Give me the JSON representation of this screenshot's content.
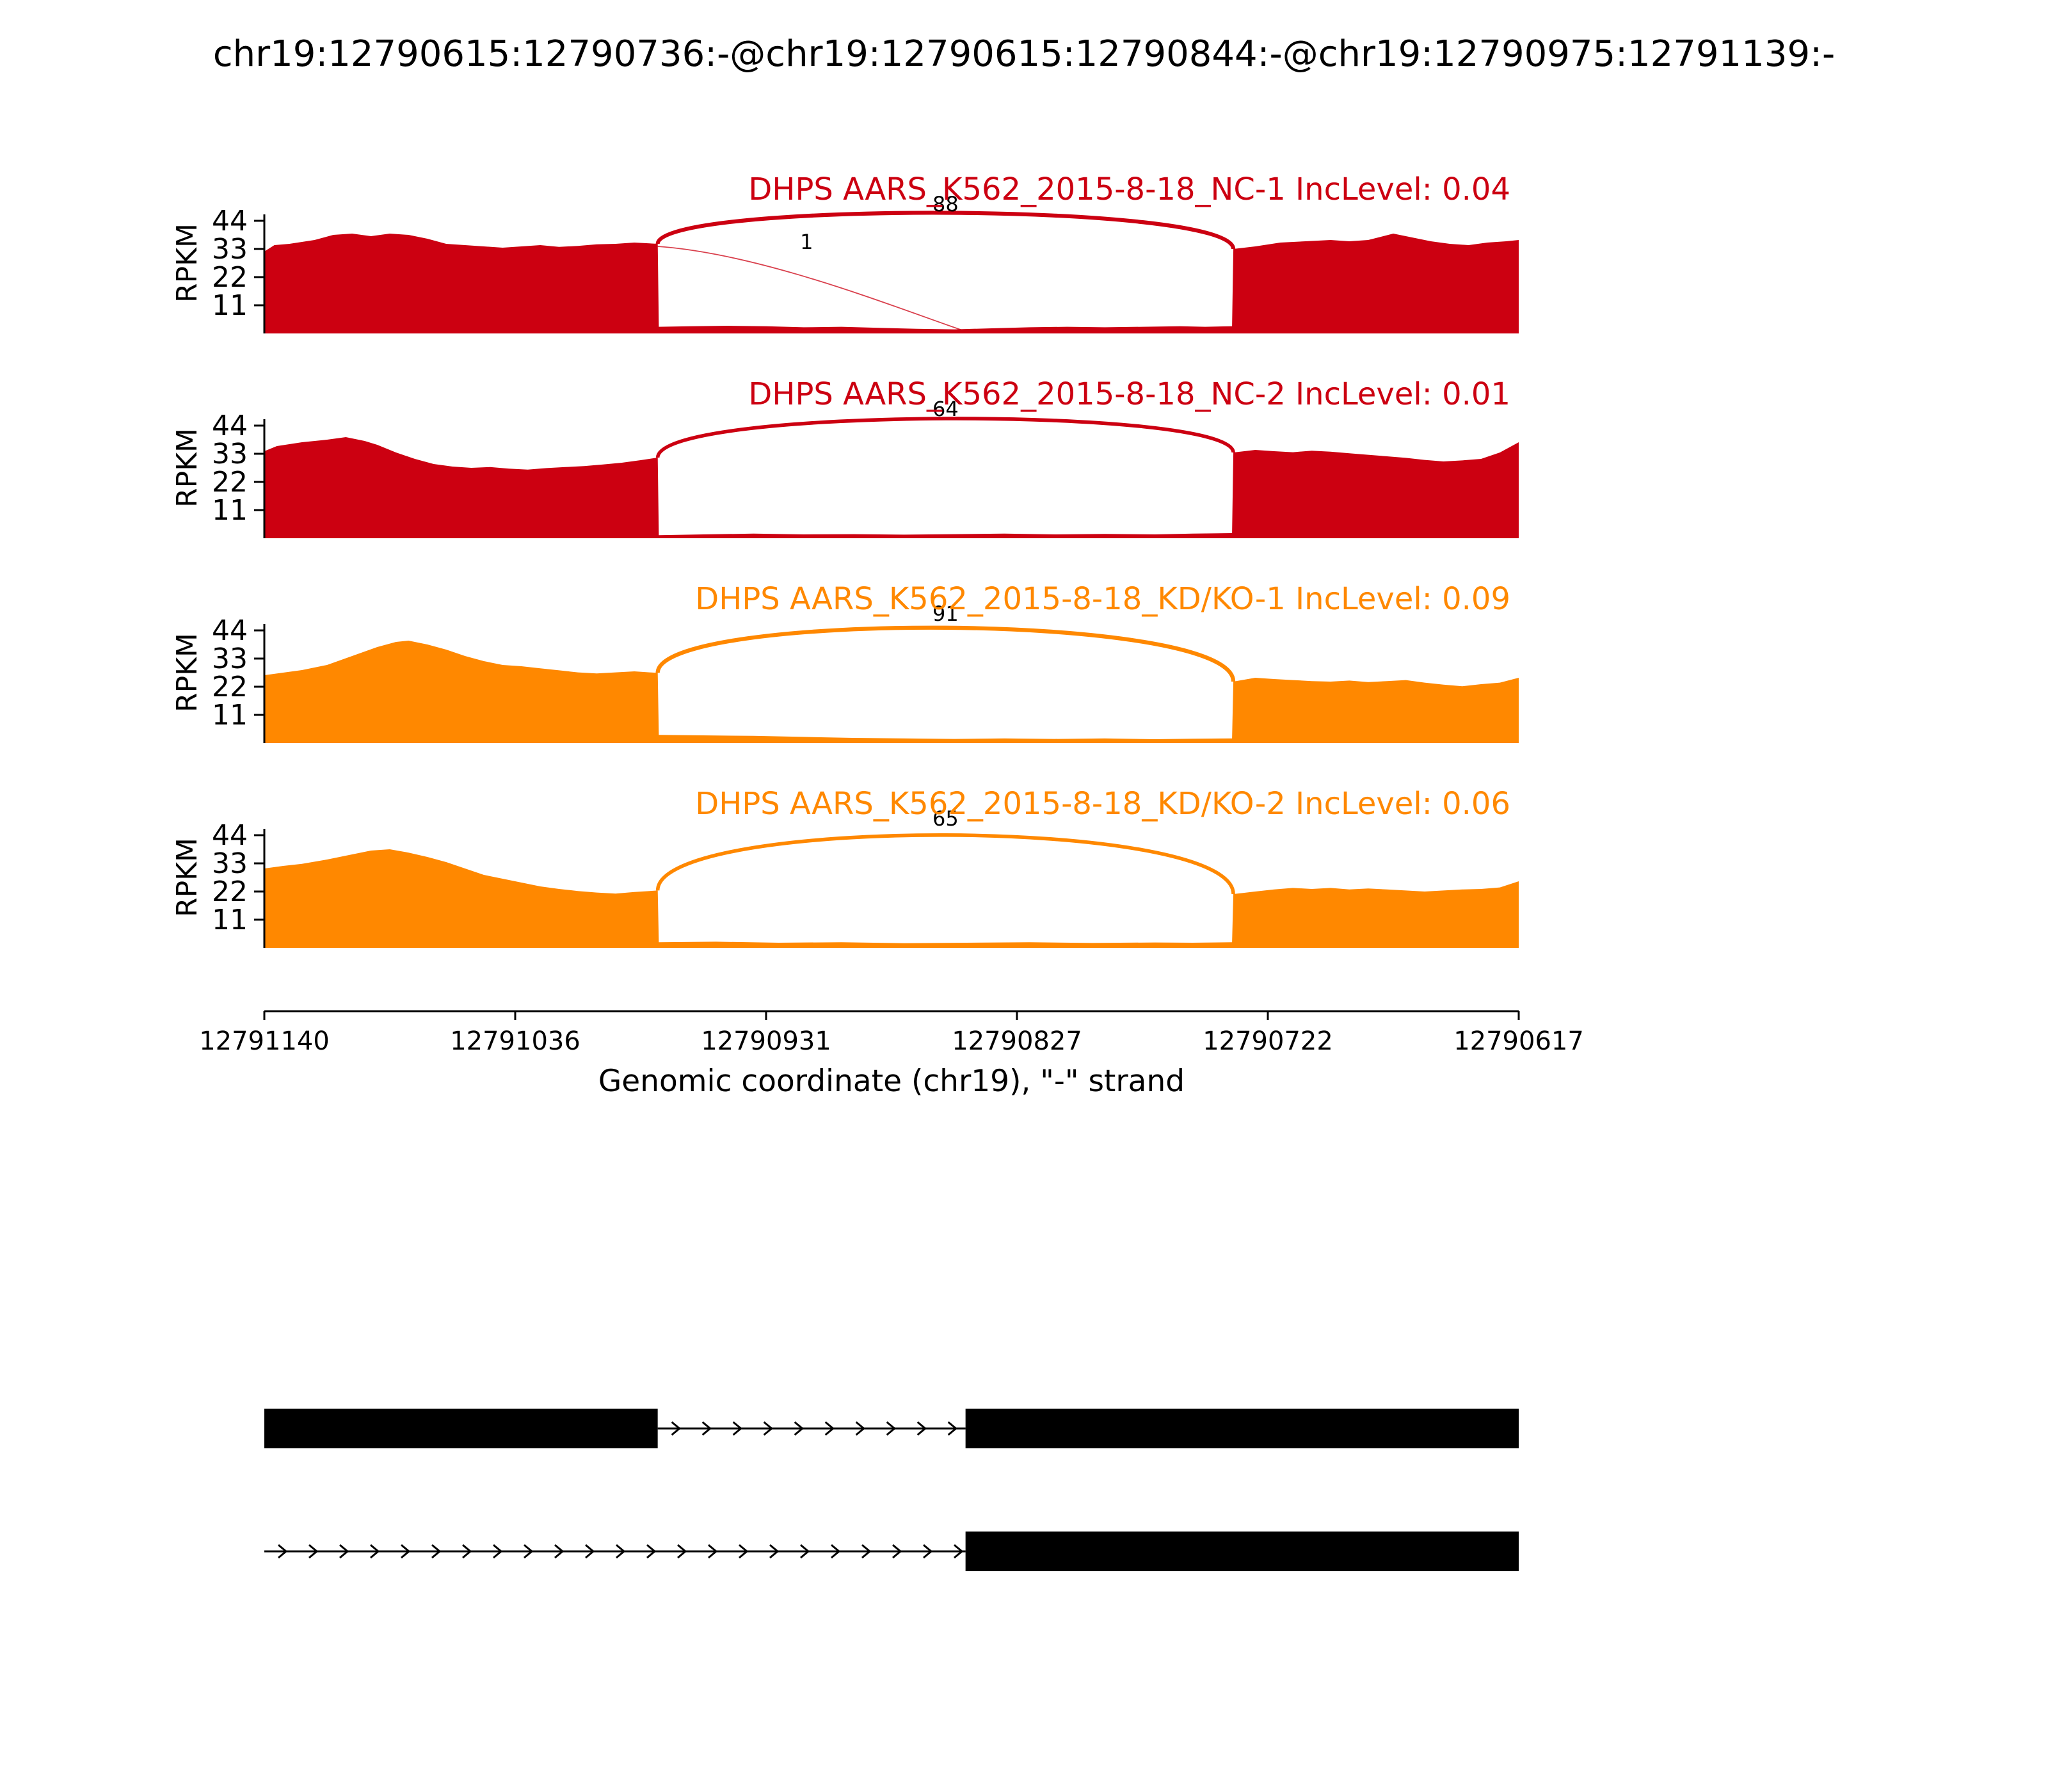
{
  "title": "chr19:12790615:12790736:-@chr19:12790615:12790844:-@chr19:12790975:12791139:-",
  "chart_data": {
    "type": "area",
    "title": "chr19:12790615:12790736:-@chr19:12790615:12790844:-@chr19:12790975:12791139:-",
    "xlabel": "Genomic coordinate (chr19), \"-\" strand",
    "ylabel": "RPKM",
    "ylim": [
      0,
      48
    ],
    "y_ticks": [
      11,
      22,
      33,
      44
    ],
    "x_tick_labels": [
      "12791140",
      "12791036",
      "12790931",
      "12790827",
      "12790722",
      "12790617"
    ],
    "grid": false,
    "legend": "none",
    "tracks": [
      {
        "name": "DHPS AARS_K562_2015-8-18_NC-1",
        "inc_level_label": "IncLevel: 0.04",
        "color": "#CC0011",
        "coverage": [
          [
            0,
            32
          ],
          [
            0.008,
            34.5
          ],
          [
            0.02,
            35
          ],
          [
            0.04,
            36.5
          ],
          [
            0.055,
            38.5
          ],
          [
            0.07,
            39
          ],
          [
            0.085,
            38
          ],
          [
            0.1,
            39
          ],
          [
            0.115,
            38.5
          ],
          [
            0.13,
            37
          ],
          [
            0.145,
            35
          ],
          [
            0.16,
            34.5
          ],
          [
            0.175,
            34
          ],
          [
            0.19,
            33.5
          ],
          [
            0.205,
            34
          ],
          [
            0.22,
            34.5
          ],
          [
            0.235,
            33.8
          ],
          [
            0.25,
            34.2
          ],
          [
            0.265,
            34.8
          ],
          [
            0.28,
            35
          ],
          [
            0.295,
            35.5
          ],
          [
            0.3136,
            35
          ],
          [
            0.3145,
            2.6
          ],
          [
            0.34,
            2.8
          ],
          [
            0.37,
            3.0
          ],
          [
            0.4,
            2.8
          ],
          [
            0.43,
            2.4
          ],
          [
            0.46,
            2.6
          ],
          [
            0.49,
            2.2
          ],
          [
            0.52,
            1.8
          ],
          [
            0.55,
            1.6
          ],
          [
            0.58,
            2.0
          ],
          [
            0.61,
            2.4
          ],
          [
            0.64,
            2.6
          ],
          [
            0.67,
            2.4
          ],
          [
            0.7,
            2.6
          ],
          [
            0.73,
            2.8
          ],
          [
            0.75,
            2.6
          ],
          [
            0.7715,
            2.8
          ],
          [
            0.7725,
            33
          ],
          [
            0.79,
            34
          ],
          [
            0.81,
            35.5
          ],
          [
            0.83,
            36
          ],
          [
            0.85,
            36.5
          ],
          [
            0.865,
            36
          ],
          [
            0.88,
            36.5
          ],
          [
            0.9,
            39
          ],
          [
            0.915,
            37.5
          ],
          [
            0.93,
            36
          ],
          [
            0.945,
            35
          ],
          [
            0.96,
            34.5
          ],
          [
            0.975,
            35.5
          ],
          [
            0.99,
            36
          ],
          [
            1,
            36.5
          ]
        ],
        "junctions": [
          {
            "x1": 0.3136,
            "y1": 35,
            "x2": 0.7725,
            "y2": 33,
            "count": 88
          },
          {
            "x1": 0.3136,
            "y1": 34,
            "x2": 0.561,
            "y2": 0.5,
            "count": 1,
            "minor": true
          }
        ]
      },
      {
        "name": "DHPS AARS_K562_2015-8-18_NC-2",
        "inc_level_label": "IncLevel: 0.01",
        "color": "#CC0011",
        "coverage": [
          [
            0,
            34
          ],
          [
            0.01,
            36
          ],
          [
            0.03,
            37.5
          ],
          [
            0.05,
            38.5
          ],
          [
            0.065,
            39.5
          ],
          [
            0.08,
            38
          ],
          [
            0.09,
            36.5
          ],
          [
            0.105,
            33.5
          ],
          [
            0.12,
            31
          ],
          [
            0.135,
            29
          ],
          [
            0.15,
            28
          ],
          [
            0.165,
            27.5
          ],
          [
            0.18,
            27.8
          ],
          [
            0.195,
            27.2
          ],
          [
            0.21,
            26.8
          ],
          [
            0.225,
            27.4
          ],
          [
            0.24,
            27.8
          ],
          [
            0.255,
            28.2
          ],
          [
            0.27,
            28.8
          ],
          [
            0.285,
            29.5
          ],
          [
            0.3,
            30.5
          ],
          [
            0.3136,
            31.5
          ],
          [
            0.3145,
            1.2
          ],
          [
            0.35,
            1.5
          ],
          [
            0.39,
            1.8
          ],
          [
            0.43,
            1.5
          ],
          [
            0.47,
            1.6
          ],
          [
            0.51,
            1.4
          ],
          [
            0.55,
            1.6
          ],
          [
            0.59,
            1.8
          ],
          [
            0.63,
            1.5
          ],
          [
            0.67,
            1.7
          ],
          [
            0.71,
            1.5
          ],
          [
            0.74,
            1.8
          ],
          [
            0.7715,
            2.0
          ],
          [
            0.7725,
            33.5
          ],
          [
            0.79,
            34.5
          ],
          [
            0.805,
            34
          ],
          [
            0.82,
            33.6
          ],
          [
            0.835,
            34.2
          ],
          [
            0.85,
            33.8
          ],
          [
            0.865,
            33.2
          ],
          [
            0.88,
            32.6
          ],
          [
            0.895,
            32
          ],
          [
            0.91,
            31.4
          ],
          [
            0.925,
            30.6
          ],
          [
            0.94,
            30
          ],
          [
            0.955,
            30.4
          ],
          [
            0.97,
            31
          ],
          [
            0.985,
            33.5
          ],
          [
            1,
            37.5
          ]
        ],
        "junctions": [
          {
            "x1": 0.3136,
            "y1": 31.5,
            "x2": 0.7725,
            "y2": 33.5,
            "count": 64
          }
        ]
      },
      {
        "name": "DHPS AARS_K562_2015-8-18_KD/KO-1",
        "inc_level_label": "IncLevel: 0.09",
        "color": "#FF8800",
        "coverage": [
          [
            0,
            26.5
          ],
          [
            0.015,
            27.5
          ],
          [
            0.03,
            28.5
          ],
          [
            0.05,
            30.5
          ],
          [
            0.07,
            34
          ],
          [
            0.09,
            37.5
          ],
          [
            0.105,
            39.5
          ],
          [
            0.115,
            40
          ],
          [
            0.13,
            38.5
          ],
          [
            0.145,
            36.5
          ],
          [
            0.16,
            34
          ],
          [
            0.175,
            32
          ],
          [
            0.19,
            30.5
          ],
          [
            0.205,
            30
          ],
          [
            0.22,
            29.2
          ],
          [
            0.235,
            28.4
          ],
          [
            0.25,
            27.6
          ],
          [
            0.265,
            27.2
          ],
          [
            0.28,
            27.6
          ],
          [
            0.295,
            28
          ],
          [
            0.3136,
            27.4
          ],
          [
            0.3145,
            3.2
          ],
          [
            0.35,
            3.0
          ],
          [
            0.39,
            2.8
          ],
          [
            0.43,
            2.4
          ],
          [
            0.47,
            2.0
          ],
          [
            0.51,
            1.8
          ],
          [
            0.55,
            1.6
          ],
          [
            0.59,
            1.8
          ],
          [
            0.63,
            1.6
          ],
          [
            0.67,
            1.8
          ],
          [
            0.71,
            1.5
          ],
          [
            0.74,
            1.7
          ],
          [
            0.7715,
            1.8
          ],
          [
            0.7725,
            24
          ],
          [
            0.79,
            25.5
          ],
          [
            0.805,
            25
          ],
          [
            0.82,
            24.6
          ],
          [
            0.835,
            24.2
          ],
          [
            0.85,
            24
          ],
          [
            0.865,
            24.4
          ],
          [
            0.88,
            23.8
          ],
          [
            0.895,
            24.2
          ],
          [
            0.91,
            24.6
          ],
          [
            0.925,
            23.6
          ],
          [
            0.94,
            22.8
          ],
          [
            0.955,
            22.2
          ],
          [
            0.97,
            23
          ],
          [
            0.985,
            23.6
          ],
          [
            1,
            25.5
          ]
        ],
        "junctions": [
          {
            "x1": 0.3136,
            "y1": 27.4,
            "x2": 0.7725,
            "y2": 24,
            "count": 91
          }
        ]
      },
      {
        "name": "DHPS AARS_K562_2015-8-18_KD/KO-2",
        "inc_level_label": "IncLevel: 0.06",
        "color": "#FF8800",
        "coverage": [
          [
            0,
            31
          ],
          [
            0.015,
            32
          ],
          [
            0.03,
            32.8
          ],
          [
            0.05,
            34.5
          ],
          [
            0.07,
            36.5
          ],
          [
            0.085,
            38
          ],
          [
            0.1,
            38.5
          ],
          [
            0.115,
            37.2
          ],
          [
            0.13,
            35.5
          ],
          [
            0.145,
            33.5
          ],
          [
            0.16,
            31
          ],
          [
            0.175,
            28.5
          ],
          [
            0.19,
            27
          ],
          [
            0.205,
            25.5
          ],
          [
            0.22,
            24
          ],
          [
            0.235,
            23
          ],
          [
            0.25,
            22.2
          ],
          [
            0.265,
            21.6
          ],
          [
            0.28,
            21.2
          ],
          [
            0.295,
            21.8
          ],
          [
            0.3136,
            22.4
          ],
          [
            0.3145,
            2.2
          ],
          [
            0.36,
            2.4
          ],
          [
            0.41,
            2.0
          ],
          [
            0.46,
            2.2
          ],
          [
            0.51,
            1.8
          ],
          [
            0.56,
            2.0
          ],
          [
            0.61,
            2.2
          ],
          [
            0.66,
            1.9
          ],
          [
            0.71,
            2.1
          ],
          [
            0.74,
            2.0
          ],
          [
            0.7715,
            2.2
          ],
          [
            0.7725,
            21
          ],
          [
            0.79,
            22
          ],
          [
            0.805,
            22.8
          ],
          [
            0.82,
            23.4
          ],
          [
            0.835,
            23
          ],
          [
            0.85,
            23.4
          ],
          [
            0.865,
            22.8
          ],
          [
            0.88,
            23.2
          ],
          [
            0.895,
            22.8
          ],
          [
            0.91,
            22.4
          ],
          [
            0.925,
            22
          ],
          [
            0.94,
            22.4
          ],
          [
            0.955,
            22.8
          ],
          [
            0.97,
            23
          ],
          [
            0.985,
            23.6
          ],
          [
            1,
            26
          ]
        ],
        "junctions": [
          {
            "x1": 0.3136,
            "y1": 22.4,
            "x2": 0.7725,
            "y2": 21,
            "count": 65
          }
        ]
      }
    ],
    "transcripts": [
      {
        "exons": [
          [
            0,
            0.3136
          ],
          [
            0.559,
            1.0
          ]
        ],
        "introns": [
          [
            0.3136,
            0.559
          ]
        ]
      },
      {
        "exons": [
          [
            0.559,
            1.0
          ]
        ],
        "introns": [
          [
            0,
            0.559
          ]
        ]
      }
    ]
  }
}
